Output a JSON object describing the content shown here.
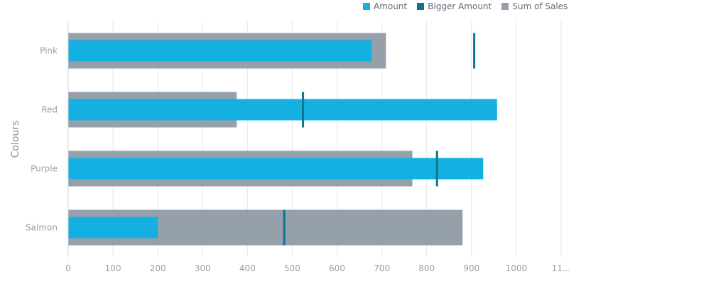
{
  "chart_data": {
    "type": "bar",
    "categories": [
      "Pink",
      "Red",
      "Purple",
      "Salmon"
    ],
    "series": [
      {
        "name": "Sum of Sales",
        "values": [
          709,
          376,
          768,
          880
        ],
        "color": "#95a0ab"
      },
      {
        "name": "Amount",
        "values": [
          677,
          957,
          926,
          200
        ],
        "color": "#14b0e2"
      },
      {
        "name": "Bigger Amount",
        "values": [
          906,
          524,
          823,
          482
        ],
        "color": "#0e7490"
      }
    ],
    "xlabel": "",
    "ylabel": "Colours",
    "xlim": [
      0,
      1100
    ],
    "x_ticks": [
      "0",
      "100",
      "200",
      "300",
      "400",
      "500",
      "600",
      "700",
      "800",
      "900",
      "1000",
      "11..."
    ],
    "grid": true,
    "legend_position": "top-right",
    "orientation": "horizontal"
  }
}
